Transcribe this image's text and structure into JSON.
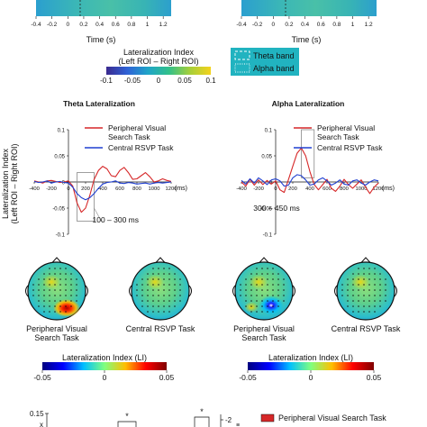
{
  "colors": {
    "peripheral": "#d62728",
    "central": "#1f3fd1",
    "band_box": "#21b3c0",
    "scalebar": [
      "#3b2a8f",
      "#2f62d6",
      "#1fa5c8",
      "#32c08a",
      "#a6cf3a",
      "#f4d21c"
    ],
    "li_bar": [
      "#00007f",
      "#0000ff",
      "#00bfff",
      "#7fff7f",
      "#ffbf00",
      "#ff0000",
      "#7f0000"
    ]
  },
  "top_heatmaps": {
    "xticks": [
      "-0.4",
      "-0.2",
      "0",
      "0.2",
      "0.4",
      "0.6",
      "0.8",
      "1",
      "1.2"
    ],
    "xlabel": "Time (s)"
  },
  "colorbar_top": {
    "title_line1": "Lateralization Index",
    "title_line2": "(Left ROI – Right ROI)",
    "ticks": [
      "-0.1",
      "-0.05",
      "0",
      "0.05",
      "0.1"
    ]
  },
  "band_legend": {
    "theta": "Theta band",
    "alpha": "Alpha band"
  },
  "shared_ylabel_line1": "Lateralization Index",
  "shared_ylabel_line2": "(Left ROI – Right ROI)",
  "chart_data": [
    {
      "type": "line",
      "title": "Theta Lateralization",
      "xlabel": "(ms)",
      "xlim": [
        -400,
        1200
      ],
      "ylim": [
        -0.1,
        0.1
      ],
      "xticks": [
        -400,
        -200,
        0,
        200,
        400,
        600,
        800,
        1000,
        1200
      ],
      "yticks": [
        0.1,
        0.05,
        0,
        -0.05,
        -0.1
      ],
      "window_label": "100 – 300 ms",
      "window": [
        100,
        300
      ],
      "series": [
        {
          "name": "Peripheral Visual Search Task",
          "x": [
            -400,
            -350,
            -300,
            -250,
            -200,
            -150,
            -100,
            -50,
            0,
            50,
            100,
            150,
            200,
            250,
            300,
            350,
            400,
            450,
            500,
            550,
            600,
            650,
            700,
            750,
            800,
            850,
            900,
            950,
            1000,
            1050,
            1100,
            1150,
            1200
          ],
          "y": [
            0.002,
            0.0,
            -0.002,
            0.002,
            0.003,
            0.001,
            -0.001,
            0.0,
            0.002,
            -0.008,
            -0.04,
            -0.058,
            -0.05,
            -0.025,
            0.005,
            0.022,
            0.03,
            0.025,
            0.012,
            0.01,
            0.022,
            0.028,
            0.018,
            0.005,
            0.006,
            0.012,
            0.018,
            0.01,
            0.0,
            0.002,
            0.006,
            0.003,
            0.001
          ]
        },
        {
          "name": "Central RSVP Task",
          "x": [
            -400,
            -350,
            -300,
            -250,
            -200,
            -150,
            -100,
            -50,
            0,
            50,
            100,
            150,
            200,
            250,
            300,
            350,
            400,
            450,
            500,
            550,
            600,
            650,
            700,
            750,
            800,
            850,
            900,
            950,
            1000,
            1050,
            1100,
            1150,
            1200
          ],
          "y": [
            0.001,
            -0.001,
            0.0,
            0.002,
            -0.002,
            0.0,
            0.001,
            -0.001,
            -0.002,
            -0.01,
            -0.022,
            -0.03,
            -0.034,
            -0.03,
            -0.022,
            -0.012,
            -0.004,
            -0.001,
            0.0,
            0.002,
            -0.002,
            -0.003,
            -0.001,
            -0.002,
            -0.004,
            -0.003,
            -0.002,
            -0.004,
            -0.002,
            -0.001,
            -0.002,
            -0.001,
            0.0
          ]
        }
      ]
    },
    {
      "type": "line",
      "title": "Alpha Lateralization",
      "xlabel": "(ms)",
      "xlim": [
        -400,
        1200
      ],
      "ylim": [
        -0.1,
        0.1
      ],
      "xticks": [
        -400,
        -200,
        0,
        200,
        400,
        600,
        800,
        1000,
        1200
      ],
      "yticks": [
        0.1,
        0.05,
        0,
        -0.05,
        -0.1
      ],
      "window_label": "300 – 450 ms",
      "window": [
        300,
        450
      ],
      "series": [
        {
          "name": "Peripheral Visual Search Task",
          "x": [
            -400,
            -350,
            -300,
            -250,
            -200,
            -150,
            -100,
            -50,
            0,
            50,
            100,
            150,
            200,
            250,
            300,
            350,
            400,
            450,
            500,
            550,
            600,
            650,
            700,
            750,
            800,
            850,
            900,
            950,
            1000,
            1050,
            1100,
            1150,
            1200
          ],
          "y": [
            0.0,
            -0.008,
            0.005,
            -0.006,
            0.004,
            -0.005,
            0.003,
            -0.004,
            0.002,
            -0.015,
            -0.02,
            0.005,
            0.03,
            0.055,
            0.065,
            0.05,
            0.02,
            -0.005,
            -0.015,
            -0.005,
            0.005,
            -0.012,
            -0.018,
            -0.008,
            0.005,
            -0.005,
            -0.012,
            -0.004,
            0.004,
            -0.01,
            -0.022,
            -0.01,
            -0.002
          ]
        },
        {
          "name": "Central RSVP Task",
          "x": [
            -400,
            -350,
            -300,
            -250,
            -200,
            -150,
            -100,
            -50,
            0,
            50,
            100,
            150,
            200,
            250,
            300,
            350,
            400,
            450,
            500,
            550,
            600,
            650,
            700,
            750,
            800,
            850,
            900,
            950,
            1000,
            1050,
            1100,
            1150,
            1200
          ],
          "y": [
            0.003,
            -0.004,
            0.006,
            -0.002,
            0.008,
            0.002,
            -0.005,
            0.004,
            0.006,
            0.002,
            -0.008,
            -0.006,
            0.008,
            0.014,
            0.012,
            0.004,
            -0.006,
            -0.004,
            0.004,
            0.008,
            0.002,
            -0.006,
            -0.002,
            0.004,
            -0.004,
            -0.006,
            0.002,
            0.004,
            -0.002,
            -0.006,
            0.0,
            0.004,
            0.002
          ]
        }
      ]
    }
  ],
  "topomaps": [
    {
      "label1": "Peripheral Visual",
      "label2": "Search Task",
      "hot": "red"
    },
    {
      "label1": "Central RSVP Task",
      "label2": "",
      "hot": "none"
    },
    {
      "label1": "Peripheral Visual",
      "label2": "Search Task",
      "hot": "blue"
    },
    {
      "label1": "Central RSVP Task",
      "label2": "",
      "hot": "none"
    }
  ],
  "li_colorbar": {
    "title": "Lateralization Index (LI)",
    "ticks": [
      "-0.05",
      "0",
      "0.05"
    ]
  },
  "bottom_strip": {
    "ytick": "0.15",
    "star": "*",
    "right_tick": "-2",
    "legend_label": "Peripheral Visual Search Task"
  }
}
